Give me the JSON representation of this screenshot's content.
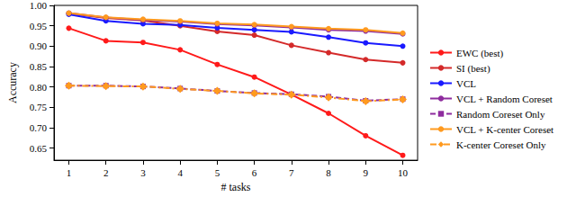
{
  "chart_data": {
    "type": "line",
    "x_label": "# tasks",
    "y_label": "Accuracy",
    "x": [
      1,
      2,
      3,
      4,
      5,
      6,
      7,
      8,
      9,
      10
    ],
    "xlim": [
      0.6,
      10.4
    ],
    "xticks": [
      1,
      2,
      3,
      4,
      5,
      6,
      7,
      8,
      9,
      10
    ],
    "ylim": [
      0.62,
      1.0
    ],
    "yticks": [
      0.65,
      {
        "value": 0.7,
        "label": "0.70"
      },
      0.75,
      {
        "value": 0.8,
        "label": "0.80"
      },
      0.85,
      {
        "value": 0.9,
        "label": "0.90"
      },
      0.95,
      {
        "value": 1.0,
        "label": "1.00"
      }
    ],
    "grid": false,
    "legend": "right",
    "series": [
      {
        "name": "EWC (best)",
        "color": "#ff1a1a",
        "marker": "circle",
        "line_style": "solid",
        "values": [
          0.944,
          0.913,
          0.909,
          0.891,
          0.855,
          0.824,
          0.781,
          0.735,
          0.68,
          0.632
        ]
      },
      {
        "name": "SI (best)",
        "color": "#d42a2a",
        "marker": "circle",
        "line_style": "solid",
        "values": [
          0.98,
          0.969,
          0.963,
          0.95,
          0.936,
          0.927,
          0.902,
          0.884,
          0.867,
          0.859
        ]
      },
      {
        "name": "VCL",
        "color": "#1a1aff",
        "marker": "circle",
        "line_style": "solid",
        "values": [
          0.978,
          0.962,
          0.955,
          0.952,
          0.945,
          0.94,
          0.935,
          0.922,
          0.908,
          0.9
        ]
      },
      {
        "name": "VCL + Random Coreset",
        "color": "#8e2c9e",
        "marker": "circle",
        "line_style": "solid",
        "values": [
          0.981,
          0.97,
          0.964,
          0.96,
          0.954,
          0.951,
          0.946,
          0.94,
          0.937,
          0.93
        ]
      },
      {
        "name": "Random Coreset Only",
        "color": "#8e2c9e",
        "marker": "square",
        "line_style": "dashed",
        "values": [
          0.803,
          0.803,
          0.801,
          0.796,
          0.79,
          0.785,
          0.782,
          0.776,
          0.766,
          0.77
        ]
      },
      {
        "name": "VCL + K-center Coreset",
        "color": "#ff9a1f",
        "marker": "circle",
        "line_style": "solid",
        "values": [
          0.981,
          0.971,
          0.966,
          0.962,
          0.956,
          0.953,
          0.948,
          0.943,
          0.94,
          0.932
        ]
      },
      {
        "name": "K-center Coreset Only",
        "color": "#ff9a1f",
        "marker": "diamond",
        "line_style": "dashdot",
        "values": [
          0.803,
          0.802,
          0.801,
          0.795,
          0.79,
          0.784,
          0.781,
          0.774,
          0.765,
          0.769
        ]
      }
    ]
  }
}
